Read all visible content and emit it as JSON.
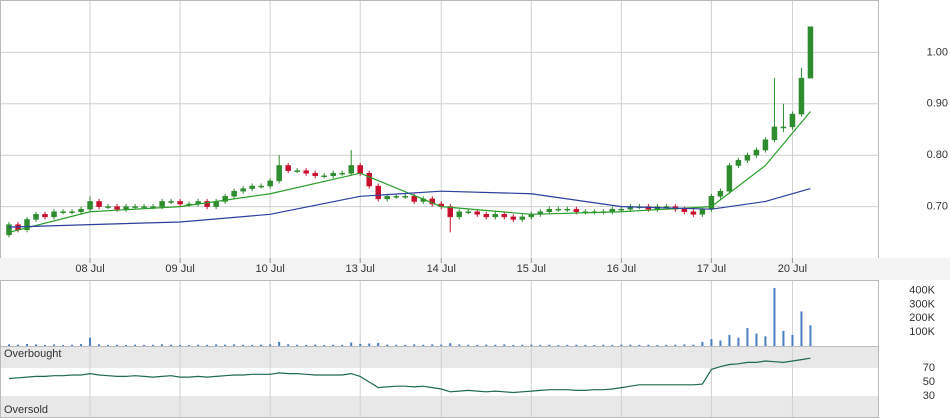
{
  "chart_data": [
    {
      "type": "candlestick",
      "xlim": [
        -1,
        96.5
      ],
      "xticks": [
        {
          "value": 9,
          "label": "08 Jul"
        },
        {
          "value": 19,
          "label": "09 Jul"
        },
        {
          "value": 29,
          "label": "10 Jul"
        },
        {
          "value": 39,
          "label": "13 Jul"
        },
        {
          "value": 48,
          "label": "14 Jul"
        },
        {
          "value": 58,
          "label": "15 Jul"
        },
        {
          "value": 68,
          "label": "16 Jul"
        },
        {
          "value": 78,
          "label": "17 Jul"
        },
        {
          "value": 87,
          "label": "20 Jul"
        }
      ],
      "ylim": [
        0.6,
        1.1
      ],
      "yticks": [
        {
          "value": 0.7,
          "label": "0.70"
        },
        {
          "value": 0.8,
          "label": "0.80"
        },
        {
          "value": 0.9,
          "label": "0.90"
        },
        {
          "value": 1.0,
          "label": "1.00"
        }
      ],
      "grid": true,
      "up_color": "#2e8b2e",
      "down_color": "#c8102e",
      "ohlc": [
        [
          0.645,
          0.67,
          0.64,
          0.665
        ],
        [
          0.665,
          0.67,
          0.65,
          0.655
        ],
        [
          0.655,
          0.68,
          0.65,
          0.675
        ],
        [
          0.675,
          0.69,
          0.67,
          0.685
        ],
        [
          0.685,
          0.69,
          0.675,
          0.68
        ],
        [
          0.68,
          0.695,
          0.675,
          0.69
        ],
        [
          0.69,
          0.695,
          0.685,
          0.69
        ],
        [
          0.69,
          0.695,
          0.685,
          0.69
        ],
        [
          0.69,
          0.7,
          0.685,
          0.695
        ],
        [
          0.695,
          0.72,
          0.69,
          0.71
        ],
        [
          0.71,
          0.715,
          0.695,
          0.7
        ],
        [
          0.7,
          0.705,
          0.695,
          0.7
        ],
        [
          0.7,
          0.705,
          0.69,
          0.695
        ],
        [
          0.695,
          0.705,
          0.69,
          0.7
        ],
        [
          0.7,
          0.705,
          0.695,
          0.7
        ],
        [
          0.7,
          0.705,
          0.695,
          0.7
        ],
        [
          0.7,
          0.705,
          0.695,
          0.7
        ],
        [
          0.7,
          0.715,
          0.695,
          0.71
        ],
        [
          0.71,
          0.715,
          0.705,
          0.71
        ],
        [
          0.71,
          0.715,
          0.7,
          0.705
        ],
        [
          0.705,
          0.71,
          0.7,
          0.705
        ],
        [
          0.705,
          0.715,
          0.7,
          0.71
        ],
        [
          0.71,
          0.715,
          0.695,
          0.7
        ],
        [
          0.7,
          0.715,
          0.695,
          0.71
        ],
        [
          0.71,
          0.725,
          0.705,
          0.72
        ],
        [
          0.72,
          0.735,
          0.715,
          0.73
        ],
        [
          0.73,
          0.74,
          0.725,
          0.735
        ],
        [
          0.735,
          0.745,
          0.73,
          0.74
        ],
        [
          0.74,
          0.745,
          0.735,
          0.74
        ],
        [
          0.74,
          0.755,
          0.735,
          0.75
        ],
        [
          0.75,
          0.8,
          0.745,
          0.78
        ],
        [
          0.78,
          0.785,
          0.765,
          0.77
        ],
        [
          0.77,
          0.775,
          0.765,
          0.77
        ],
        [
          0.77,
          0.775,
          0.76,
          0.765
        ],
        [
          0.765,
          0.77,
          0.755,
          0.76
        ],
        [
          0.76,
          0.765,
          0.755,
          0.76
        ],
        [
          0.76,
          0.77,
          0.755,
          0.765
        ],
        [
          0.765,
          0.77,
          0.76,
          0.765
        ],
        [
          0.765,
          0.81,
          0.76,
          0.78
        ],
        [
          0.78,
          0.785,
          0.76,
          0.765
        ],
        [
          0.765,
          0.77,
          0.735,
          0.74
        ],
        [
          0.74,
          0.745,
          0.71,
          0.715
        ],
        [
          0.715,
          0.725,
          0.71,
          0.72
        ],
        [
          0.72,
          0.725,
          0.715,
          0.72
        ],
        [
          0.72,
          0.725,
          0.715,
          0.72
        ],
        [
          0.72,
          0.725,
          0.705,
          0.71
        ],
        [
          0.71,
          0.72,
          0.705,
          0.715
        ],
        [
          0.715,
          0.72,
          0.7,
          0.705
        ],
        [
          0.705,
          0.71,
          0.695,
          0.7
        ],
        [
          0.7,
          0.705,
          0.65,
          0.68
        ],
        [
          0.68,
          0.695,
          0.675,
          0.69
        ],
        [
          0.69,
          0.695,
          0.685,
          0.69
        ],
        [
          0.69,
          0.695,
          0.68,
          0.685
        ],
        [
          0.685,
          0.69,
          0.675,
          0.68
        ],
        [
          0.68,
          0.69,
          0.675,
          0.685
        ],
        [
          0.685,
          0.69,
          0.675,
          0.68
        ],
        [
          0.68,
          0.685,
          0.67,
          0.675
        ],
        [
          0.675,
          0.685,
          0.67,
          0.68
        ],
        [
          0.68,
          0.69,
          0.675,
          0.685
        ],
        [
          0.685,
          0.695,
          0.68,
          0.69
        ],
        [
          0.69,
          0.7,
          0.685,
          0.695
        ],
        [
          0.695,
          0.7,
          0.69,
          0.695
        ],
        [
          0.695,
          0.7,
          0.69,
          0.695
        ],
        [
          0.695,
          0.7,
          0.685,
          0.69
        ],
        [
          0.69,
          0.695,
          0.685,
          0.69
        ],
        [
          0.69,
          0.695,
          0.685,
          0.69
        ],
        [
          0.69,
          0.695,
          0.685,
          0.69
        ],
        [
          0.69,
          0.7,
          0.685,
          0.695
        ],
        [
          0.695,
          0.7,
          0.69,
          0.695
        ],
        [
          0.695,
          0.705,
          0.69,
          0.7
        ],
        [
          0.7,
          0.705,
          0.695,
          0.7
        ],
        [
          0.7,
          0.705,
          0.69,
          0.695
        ],
        [
          0.695,
          0.705,
          0.69,
          0.7
        ],
        [
          0.7,
          0.705,
          0.695,
          0.7
        ],
        [
          0.7,
          0.705,
          0.69,
          0.695
        ],
        [
          0.695,
          0.7,
          0.685,
          0.69
        ],
        [
          0.69,
          0.695,
          0.68,
          0.685
        ],
        [
          0.685,
          0.7,
          0.68,
          0.695
        ],
        [
          0.695,
          0.725,
          0.69,
          0.72
        ],
        [
          0.72,
          0.735,
          0.715,
          0.73
        ],
        [
          0.73,
          0.785,
          0.725,
          0.78
        ],
        [
          0.78,
          0.795,
          0.775,
          0.79
        ],
        [
          0.79,
          0.805,
          0.785,
          0.8
        ],
        [
          0.8,
          0.815,
          0.795,
          0.81
        ],
        [
          0.81,
          0.835,
          0.805,
          0.83
        ],
        [
          0.83,
          0.95,
          0.825,
          0.855
        ],
        [
          0.855,
          0.9,
          0.845,
          0.855
        ],
        [
          0.855,
          0.885,
          0.85,
          0.88
        ],
        [
          0.88,
          0.97,
          0.875,
          0.95
        ],
        [
          0.95,
          1.05,
          0.95,
          1.05
        ]
      ],
      "series": [
        {
          "color": "#2a9d2a",
          "x": [
            0,
            9,
            19,
            29,
            39,
            48,
            58,
            68,
            78,
            84,
            89
          ],
          "values": [
            0.65,
            0.69,
            0.7,
            0.725,
            0.765,
            0.7,
            0.685,
            0.69,
            0.7,
            0.78,
            0.885
          ]
        },
        {
          "color": "#2b3f9e",
          "x": [
            0,
            9,
            19,
            29,
            39,
            48,
            58,
            68,
            78,
            84,
            89
          ],
          "values": [
            0.66,
            0.665,
            0.67,
            0.685,
            0.72,
            0.73,
            0.725,
            0.7,
            0.695,
            0.71,
            0.735
          ]
        }
      ]
    },
    {
      "type": "bar",
      "xlim": [
        -1,
        96.5
      ],
      "ylim": [
        0,
        470000
      ],
      "color": "#4a7fc1",
      "yticks": [
        {
          "value": 100000,
          "label": "100K"
        },
        {
          "value": 200000,
          "label": "200K"
        },
        {
          "value": 300000,
          "label": "300K"
        },
        {
          "value": 400000,
          "label": "400K"
        }
      ],
      "values": [
        12000,
        9000,
        15000,
        11000,
        8000,
        10000,
        7000,
        9000,
        14000,
        60000,
        13000,
        8000,
        9000,
        7000,
        10000,
        8000,
        9000,
        12000,
        10000,
        8000,
        7000,
        9000,
        8000,
        11000,
        10000,
        12000,
        9000,
        8000,
        10000,
        11000,
        30000,
        12000,
        9000,
        8000,
        10000,
        7000,
        9000,
        8000,
        25000,
        15000,
        18000,
        22000,
        10000,
        9000,
        8000,
        12000,
        9000,
        11000,
        10000,
        20000,
        12000,
        9000,
        8000,
        10000,
        9000,
        11000,
        8000,
        9000,
        10000,
        8000,
        9000,
        7000,
        8000,
        9000,
        8000,
        7000,
        9000,
        8000,
        10000,
        9000,
        8000,
        9000,
        7000,
        8000,
        9000,
        12000,
        10000,
        30000,
        50000,
        40000,
        80000,
        60000,
        130000,
        90000,
        70000,
        420000,
        110000,
        80000,
        250000,
        150000
      ]
    },
    {
      "type": "line",
      "xlim": [
        -1,
        96.5
      ],
      "ylim": [
        0,
        100
      ],
      "yticks": [
        30,
        50,
        70
      ],
      "color": "#1f6b4a",
      "annotations": [
        "Overbought",
        "Oversold"
      ],
      "values": [
        55,
        56,
        57,
        58,
        58,
        59,
        59,
        60,
        60,
        62,
        60,
        59,
        58,
        58,
        59,
        58,
        57,
        58,
        59,
        57,
        57,
        58,
        57,
        58,
        59,
        60,
        60,
        61,
        61,
        61,
        63,
        62,
        62,
        61,
        60,
        60,
        60,
        60,
        62,
        58,
        50,
        42,
        43,
        44,
        44,
        43,
        44,
        42,
        40,
        36,
        37,
        38,
        37,
        36,
        37,
        36,
        35,
        36,
        37,
        38,
        39,
        39,
        39,
        38,
        38,
        39,
        39,
        40,
        42,
        44,
        46,
        46,
        46,
        46,
        46,
        46,
        46,
        47,
        68,
        72,
        75,
        76,
        78,
        78,
        80,
        79,
        78,
        80,
        82,
        84
      ]
    }
  ]
}
